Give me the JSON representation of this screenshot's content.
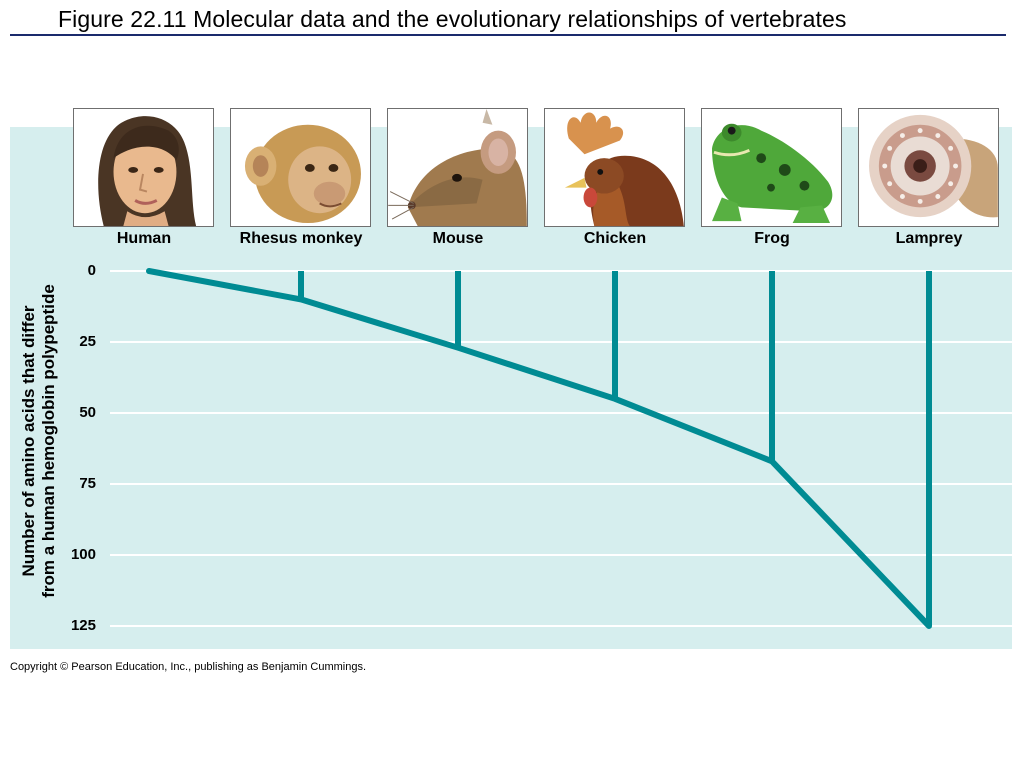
{
  "title": "Figure 22.11  Molecular data and the evolutionary relationships of vertebrates",
  "ylabel_line1": "Number of amino acids that differ",
  "ylabel_line2": "from a human hemoglobin polypeptide",
  "copyright": "Copyright © Pearson Education, Inc., publishing as Benjamin Cummings.",
  "colors": {
    "branch": "#008b93",
    "panel": "#d6eeee",
    "gridline": "#ffffff"
  },
  "axis": {
    "ticks": [
      "0",
      "25",
      "50",
      "75",
      "100",
      "125"
    ],
    "tick_values": [
      0,
      25,
      50,
      75,
      100,
      125
    ],
    "range": [
      0,
      125
    ]
  },
  "animals": [
    {
      "label": "Human",
      "picture": "human-face-icon",
      "difference": 0
    },
    {
      "label": "Rhesus monkey",
      "picture": "monkey-face-icon",
      "difference": 10
    },
    {
      "label": "Mouse",
      "picture": "mouse-head-icon",
      "difference": 27
    },
    {
      "label": "Chicken",
      "picture": "chicken-head-icon",
      "difference": 45
    },
    {
      "label": "Frog",
      "picture": "frog-icon",
      "difference": 67
    },
    {
      "label": "Lamprey",
      "picture": "lamprey-mouth-icon",
      "difference": 125
    }
  ]
}
